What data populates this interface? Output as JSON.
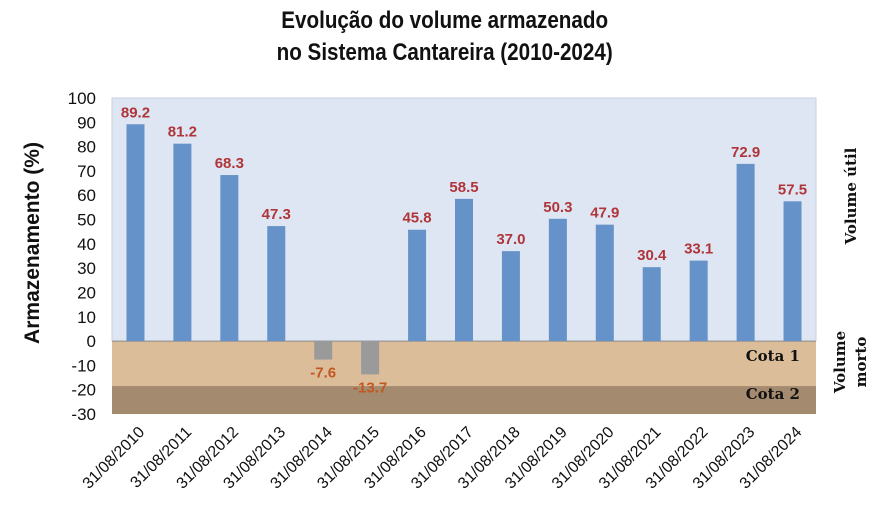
{
  "chart_data": {
    "type": "bar",
    "title_lines": [
      "Evolução do volume armazenado",
      "no Sistema Cantareira (2010-2024)"
    ],
    "ylabel": "Armazenamento (%)",
    "xlabel": "",
    "ylim": [
      -30,
      100
    ],
    "yticks": [
      100,
      90,
      80,
      70,
      60,
      50,
      40,
      30,
      20,
      10,
      0,
      -10,
      -20,
      -30
    ],
    "categories": [
      "31/08/2010",
      "31/08/2011",
      "31/08/2012",
      "31/08/2013",
      "31/08/2014",
      "31/08/2015",
      "31/08/2016",
      "31/08/2017",
      "31/08/2018",
      "31/08/2019",
      "31/08/2020",
      "31/08/2021",
      "31/08/2022",
      "31/08/2023",
      "31/08/2024"
    ],
    "values": [
      89.2,
      81.2,
      68.3,
      47.3,
      -7.6,
      -13.7,
      45.8,
      58.5,
      37.0,
      50.3,
      47.9,
      30.4,
      33.1,
      72.9,
      57.5
    ],
    "value_labels": [
      "89.2",
      "81.2",
      "68.3",
      "47.3",
      "-7.6",
      "-13.7",
      "45.8",
      "58.5",
      "37.0",
      "50.3",
      "47.9",
      "30.4",
      "33.1",
      "72.9",
      "57.5"
    ],
    "bands": [
      {
        "label": "Cota 1",
        "from": -18.5,
        "to": 0,
        "color": "#dcbd9a"
      },
      {
        "label": "Cota 2",
        "from": -30,
        "to": -18.5,
        "color": "#a48a6e"
      }
    ],
    "useful_band_color": "#dde6f2",
    "side_labels": {
      "useful": "Volume útil",
      "dead_line1": "Volume",
      "dead_line2": "morto"
    },
    "colors": {
      "positive_bar": "#6592c8",
      "negative_bar": "#9a9a9a",
      "positive_label": "#b0353a",
      "negative_label": "#c4561f"
    }
  }
}
